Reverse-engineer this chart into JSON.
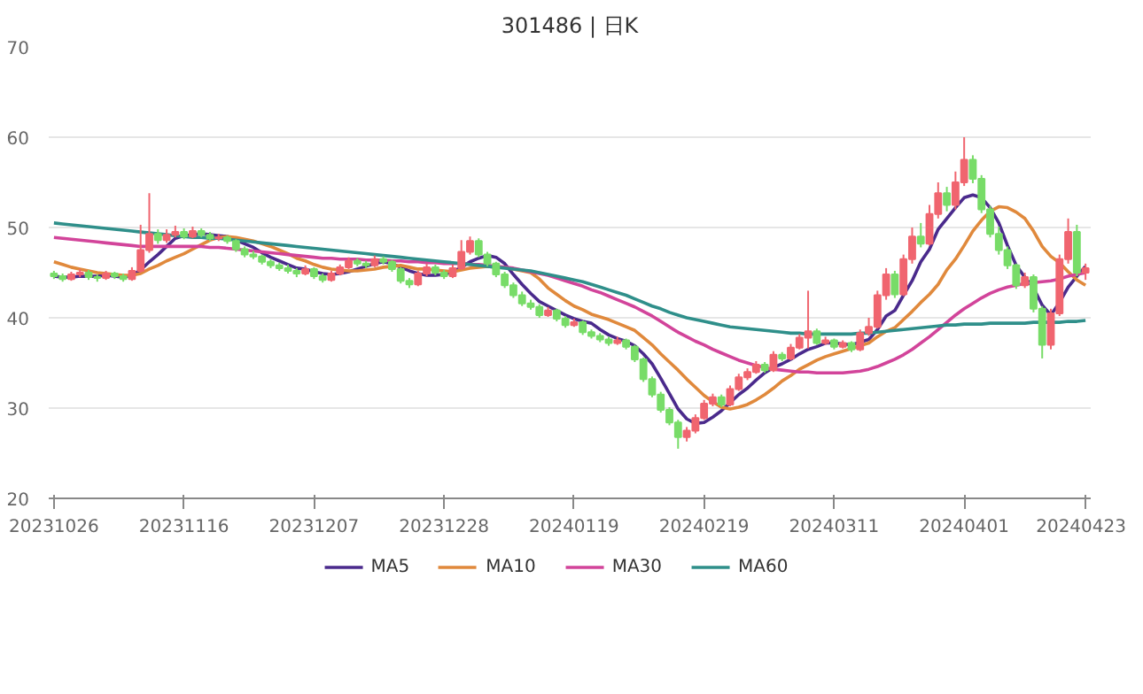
{
  "chart_data": {
    "type": "candlestick",
    "title": "301486 | 日K",
    "categories": [
      "20231026",
      null,
      null,
      null,
      null,
      null,
      null,
      null,
      null,
      null,
      null,
      null,
      null,
      null,
      null,
      "20231116",
      null,
      null,
      null,
      null,
      null,
      null,
      null,
      null,
      null,
      null,
      null,
      null,
      null,
      null,
      "20231207",
      null,
      null,
      null,
      null,
      null,
      null,
      null,
      null,
      null,
      null,
      null,
      null,
      null,
      null,
      "20231228",
      null,
      null,
      null,
      null,
      null,
      null,
      null,
      null,
      null,
      null,
      null,
      null,
      null,
      null,
      "20240119",
      null,
      null,
      null,
      null,
      null,
      null,
      null,
      null,
      null,
      null,
      null,
      null,
      null,
      null,
      "20240219",
      null,
      null,
      null,
      null,
      null,
      null,
      null,
      null,
      null,
      null,
      null,
      null,
      null,
      null,
      "20240311",
      null,
      null,
      null,
      null,
      null,
      null,
      null,
      null,
      null,
      null,
      null,
      null,
      null,
      null,
      "20240401",
      null,
      null,
      null,
      null,
      null,
      null,
      null,
      null,
      null,
      null,
      null,
      null,
      null,
      "20240423"
    ],
    "ohlc": [
      [
        44.9,
        45.2,
        44.3,
        44.6
      ],
      [
        44.6,
        44.9,
        44.0,
        44.3
      ],
      [
        44.3,
        45.1,
        44.1,
        44.8
      ],
      [
        44.8,
        45.4,
        44.5,
        45.0
      ],
      [
        45.0,
        45.3,
        44.2,
        44.5
      ],
      [
        44.5,
        44.8,
        44.0,
        44.4
      ],
      [
        44.4,
        45.2,
        44.2,
        44.9
      ],
      [
        44.9,
        45.1,
        44.3,
        44.6
      ],
      [
        44.6,
        44.9,
        44.0,
        44.3
      ],
      [
        44.3,
        45.6,
        44.1,
        45.2
      ],
      [
        45.2,
        50.3,
        45.0,
        47.5
      ],
      [
        47.5,
        53.8,
        47.2,
        49.3
      ],
      [
        49.3,
        49.8,
        48.2,
        48.6
      ],
      [
        48.6,
        49.8,
        48.3,
        49.2
      ],
      [
        49.2,
        50.2,
        48.9,
        49.5
      ],
      [
        49.5,
        49.9,
        48.7,
        49.0
      ],
      [
        49.0,
        50.1,
        48.8,
        49.6
      ],
      [
        49.6,
        49.9,
        48.9,
        49.2
      ],
      [
        49.2,
        49.5,
        48.5,
        48.8
      ],
      [
        48.8,
        49.3,
        48.5,
        48.9
      ],
      [
        48.9,
        49.1,
        48.2,
        48.5
      ],
      [
        48.5,
        48.7,
        47.3,
        47.6
      ],
      [
        47.6,
        47.9,
        46.7,
        47.0
      ],
      [
        47.0,
        47.4,
        46.5,
        46.8
      ],
      [
        46.8,
        47.0,
        45.9,
        46.2
      ],
      [
        46.2,
        46.5,
        45.5,
        45.8
      ],
      [
        45.8,
        46.1,
        45.2,
        45.5
      ],
      [
        45.5,
        45.9,
        44.9,
        45.2
      ],
      [
        45.2,
        45.5,
        44.5,
        44.9
      ],
      [
        44.9,
        45.8,
        44.7,
        45.4
      ],
      [
        45.4,
        45.6,
        44.3,
        44.6
      ],
      [
        44.6,
        44.9,
        43.9,
        44.2
      ],
      [
        44.2,
        45.2,
        44.0,
        44.9
      ],
      [
        44.9,
        45.9,
        44.7,
        45.6
      ],
      [
        45.6,
        46.7,
        45.4,
        46.3
      ],
      [
        46.3,
        46.6,
        45.7,
        46.0
      ],
      [
        46.0,
        46.3,
        45.5,
        45.8
      ],
      [
        45.8,
        46.9,
        45.6,
        46.5
      ],
      [
        46.5,
        46.8,
        45.9,
        46.2
      ],
      [
        46.2,
        46.4,
        45.1,
        45.4
      ],
      [
        45.4,
        45.6,
        43.8,
        44.1
      ],
      [
        44.1,
        44.4,
        43.3,
        43.7
      ],
      [
        43.7,
        45.2,
        43.5,
        44.9
      ],
      [
        44.9,
        46.0,
        44.6,
        45.6
      ],
      [
        45.6,
        45.9,
        44.7,
        45.0
      ],
      [
        45.0,
        45.3,
        44.3,
        44.6
      ],
      [
        44.6,
        45.9,
        44.4,
        45.5
      ],
      [
        45.5,
        48.6,
        45.3,
        47.3
      ],
      [
        47.3,
        49.0,
        47.0,
        48.5
      ],
      [
        48.5,
        48.8,
        46.7,
        47.0
      ],
      [
        47.0,
        47.3,
        45.7,
        46.0
      ],
      [
        46.0,
        46.2,
        44.5,
        44.8
      ],
      [
        44.8,
        45.1,
        43.3,
        43.6
      ],
      [
        43.6,
        43.9,
        42.2,
        42.5
      ],
      [
        42.5,
        42.9,
        41.3,
        41.6
      ],
      [
        41.6,
        42.0,
        40.9,
        41.2
      ],
      [
        41.2,
        41.5,
        40.0,
        40.3
      ],
      [
        40.3,
        41.2,
        40.1,
        40.8
      ],
      [
        40.8,
        41.0,
        39.6,
        39.9
      ],
      [
        39.9,
        40.2,
        38.9,
        39.2
      ],
      [
        39.2,
        39.9,
        39.0,
        39.5
      ],
      [
        39.5,
        39.7,
        38.1,
        38.4
      ],
      [
        38.4,
        38.7,
        37.7,
        38.0
      ],
      [
        38.0,
        38.3,
        37.3,
        37.6
      ],
      [
        37.6,
        37.9,
        36.9,
        37.2
      ],
      [
        37.2,
        37.9,
        37.0,
        37.5
      ],
      [
        37.5,
        37.7,
        36.5,
        36.8
      ],
      [
        36.8,
        37.0,
        35.1,
        35.4
      ],
      [
        35.4,
        35.6,
        32.9,
        33.2
      ],
      [
        33.2,
        33.5,
        31.2,
        31.5
      ],
      [
        31.5,
        31.8,
        29.5,
        29.8
      ],
      [
        29.8,
        30.1,
        28.1,
        28.4
      ],
      [
        28.4,
        28.7,
        25.5,
        26.8
      ],
      [
        26.8,
        27.9,
        26.3,
        27.5
      ],
      [
        27.5,
        29.3,
        27.2,
        28.9
      ],
      [
        28.9,
        30.9,
        28.7,
        30.5
      ],
      [
        30.5,
        31.6,
        30.2,
        31.2
      ],
      [
        31.2,
        31.5,
        30.1,
        30.4
      ],
      [
        30.4,
        32.5,
        30.2,
        32.1
      ],
      [
        32.1,
        33.8,
        31.9,
        33.4
      ],
      [
        33.4,
        34.4,
        33.1,
        34.0
      ],
      [
        34.0,
        35.2,
        33.8,
        34.8
      ],
      [
        34.8,
        35.1,
        33.9,
        34.2
      ],
      [
        34.2,
        36.3,
        34.0,
        35.9
      ],
      [
        35.9,
        36.2,
        35.2,
        35.5
      ],
      [
        35.5,
        37.1,
        35.3,
        36.7
      ],
      [
        36.7,
        38.2,
        36.5,
        37.8
      ],
      [
        37.8,
        43.0,
        36.6,
        38.5
      ],
      [
        38.5,
        38.8,
        37.0,
        37.2
      ],
      [
        37.2,
        37.9,
        37.0,
        37.5
      ],
      [
        37.5,
        37.7,
        36.5,
        36.8
      ],
      [
        36.8,
        37.5,
        36.6,
        37.2
      ],
      [
        37.2,
        37.4,
        36.2,
        36.5
      ],
      [
        36.5,
        38.7,
        36.3,
        38.3
      ],
      [
        38.3,
        40.0,
        38.0,
        39.0
      ],
      [
        39.0,
        43.0,
        38.8,
        42.5
      ],
      [
        42.5,
        45.5,
        42.0,
        44.8
      ],
      [
        44.8,
        45.2,
        42.2,
        42.6
      ],
      [
        42.6,
        47.0,
        42.4,
        46.5
      ],
      [
        46.5,
        50.0,
        46.0,
        49.0
      ],
      [
        49.0,
        50.5,
        47.8,
        48.2
      ],
      [
        48.2,
        52.5,
        48.0,
        51.5
      ],
      [
        51.5,
        55.0,
        51.0,
        53.8
      ],
      [
        53.8,
        54.5,
        51.8,
        52.5
      ],
      [
        52.5,
        56.2,
        52.0,
        55.0
      ],
      [
        55.0,
        60.0,
        54.6,
        57.5
      ],
      [
        57.5,
        58.0,
        54.9,
        55.4
      ],
      [
        55.4,
        55.8,
        51.6,
        52.0
      ],
      [
        52.0,
        52.4,
        48.9,
        49.3
      ],
      [
        49.3,
        50.1,
        47.0,
        47.5
      ],
      [
        47.5,
        47.9,
        45.4,
        45.8
      ],
      [
        45.8,
        46.0,
        43.2,
        43.6
      ],
      [
        43.6,
        45.0,
        43.3,
        44.5
      ],
      [
        44.5,
        44.8,
        40.6,
        41.0
      ],
      [
        41.0,
        41.3,
        35.5,
        37.0
      ],
      [
        37.0,
        41.0,
        36.5,
        40.5
      ],
      [
        40.5,
        47.0,
        40.2,
        46.5
      ],
      [
        46.5,
        51.0,
        46.0,
        49.5
      ],
      [
        49.5,
        50.3,
        44.6,
        45.0
      ],
      [
        45.0,
        46.0,
        44.2,
        45.5
      ]
    ],
    "colors": [
      "#78dc68",
      "#78dc68",
      "#f0656f",
      "#f0656f",
      "#78dc68",
      "#78dc68",
      "#f0656f",
      "#78dc68",
      "#78dc68",
      "#f0656f",
      "#f0656f",
      "#f0656f",
      "#78dc68",
      "#f0656f",
      "#f0656f",
      "#78dc68",
      "#f0656f",
      "#78dc68",
      "#78dc68",
      "#f0656f",
      "#78dc68",
      "#78dc68",
      "#78dc68",
      "#78dc68",
      "#78dc68",
      "#78dc68",
      "#78dc68",
      "#78dc68",
      "#78dc68",
      "#f0656f",
      "#78dc68",
      "#78dc68",
      "#f0656f",
      "#f0656f",
      "#f0656f",
      "#78dc68",
      "#78dc68",
      "#f0656f",
      "#78dc68",
      "#78dc68",
      "#78dc68",
      "#78dc68",
      "#f0656f",
      "#f0656f",
      "#78dc68",
      "#78dc68",
      "#f0656f",
      "#f0656f",
      "#f0656f",
      "#78dc68",
      "#78dc68",
      "#78dc68",
      "#78dc68",
      "#78dc68",
      "#78dc68",
      "#78dc68",
      "#78dc68",
      "#f0656f",
      "#78dc68",
      "#78dc68",
      "#f0656f",
      "#78dc68",
      "#78dc68",
      "#78dc68",
      "#78dc68",
      "#f0656f",
      "#78dc68",
      "#78dc68",
      "#78dc68",
      "#78dc68",
      "#78dc68",
      "#78dc68",
      "#78dc68",
      "#f0656f",
      "#f0656f",
      "#f0656f",
      "#f0656f",
      "#78dc68",
      "#f0656f",
      "#f0656f",
      "#f0656f",
      "#f0656f",
      "#78dc68",
      "#f0656f",
      "#78dc68",
      "#f0656f",
      "#f0656f",
      "#f0656f",
      "#78dc68",
      "#f0656f",
      "#78dc68",
      "#f0656f",
      "#78dc68",
      "#f0656f",
      "#f0656f",
      "#f0656f",
      "#f0656f",
      "#78dc68",
      "#f0656f",
      "#f0656f",
      "#78dc68",
      "#f0656f",
      "#f0656f",
      "#78dc68",
      "#f0656f",
      "#f0656f",
      "#78dc68",
      "#78dc68",
      "#78dc68",
      "#78dc68",
      "#78dc68",
      "#78dc68",
      "#f0656f",
      "#78dc68",
      "#78dc68",
      "#f0656f",
      "#f0656f",
      "#f0656f",
      "#78dc68",
      "#f0656f"
    ],
    "series": [
      {
        "name": "MA5",
        "type": "line",
        "color": "#4a2a8c",
        "values": [
          44.6,
          44.5,
          44.5,
          44.6,
          44.6,
          44.6,
          44.7,
          44.6,
          44.5,
          44.7,
          45.3,
          46.2,
          47.0,
          47.9,
          48.8,
          49.1,
          49.2,
          49.3,
          49.2,
          49.1,
          49.0,
          48.6,
          48.2,
          47.8,
          47.2,
          46.7,
          46.3,
          45.9,
          45.5,
          45.4,
          45.1,
          44.9,
          44.8,
          44.9,
          45.1,
          45.4,
          45.7,
          46.0,
          46.2,
          46.0,
          45.6,
          45.2,
          44.9,
          44.7,
          44.7,
          44.8,
          45.1,
          45.6,
          46.2,
          46.6,
          46.9,
          46.7,
          46.0,
          44.8,
          43.7,
          42.7,
          41.8,
          41.3,
          40.8,
          40.3,
          39.9,
          39.6,
          39.4,
          38.7,
          38.1,
          37.7,
          37.4,
          36.9,
          36.0,
          34.9,
          33.3,
          31.6,
          29.9,
          28.8,
          28.3,
          28.4,
          29.0,
          29.7,
          30.6,
          31.5,
          32.2,
          33.1,
          33.9,
          34.5,
          34.9,
          35.4,
          36.0,
          36.5,
          36.8,
          37.2,
          37.2,
          37.1,
          37.0,
          37.3,
          37.6,
          38.7,
          40.2,
          40.8,
          42.5,
          44.1,
          46.2,
          47.6,
          49.8,
          51.0,
          52.2,
          53.3,
          53.6,
          53.3,
          52.2,
          50.5,
          48.0,
          45.8,
          44.5,
          43.3,
          41.4,
          40.3,
          41.7,
          43.4,
          44.6,
          45.7
        ]
      },
      {
        "name": "MA10",
        "type": "line",
        "color": "#e0893c",
        "values": [
          46.2,
          45.9,
          45.6,
          45.4,
          45.2,
          45.0,
          44.9,
          44.8,
          44.7,
          44.7,
          44.9,
          45.4,
          45.8,
          46.3,
          46.7,
          47.1,
          47.6,
          48.1,
          48.6,
          48.9,
          49.0,
          48.9,
          48.7,
          48.5,
          48.2,
          47.9,
          47.5,
          47.1,
          46.6,
          46.3,
          45.9,
          45.6,
          45.4,
          45.3,
          45.2,
          45.2,
          45.3,
          45.4,
          45.6,
          45.7,
          45.8,
          45.6,
          45.4,
          45.4,
          45.3,
          45.2,
          45.1,
          45.3,
          45.5,
          45.6,
          45.7,
          45.6,
          45.6,
          45.4,
          45.2,
          45.0,
          44.3,
          43.3,
          42.6,
          41.9,
          41.3,
          40.9,
          40.4,
          40.1,
          39.8,
          39.4,
          39.0,
          38.6,
          37.8,
          37.0,
          36.0,
          35.1,
          34.2,
          33.2,
          32.3,
          31.4,
          30.7,
          30.1,
          29.9,
          30.1,
          30.4,
          30.9,
          31.5,
          32.2,
          33.0,
          33.6,
          34.3,
          34.8,
          35.3,
          35.7,
          36.0,
          36.3,
          36.6,
          36.9,
          37.2,
          37.9,
          38.5,
          38.9,
          39.8,
          40.7,
          41.7,
          42.6,
          43.7,
          45.3,
          46.5,
          48.0,
          49.6,
          50.8,
          51.8,
          52.3,
          52.2,
          51.7,
          51.0,
          49.6,
          47.9,
          46.8,
          46.1,
          45.1,
          44.2,
          43.6
        ]
      },
      {
        "name": "MA30",
        "type": "line",
        "color": "#d2449a",
        "values": [
          48.9,
          48.8,
          48.7,
          48.6,
          48.5,
          48.4,
          48.3,
          48.2,
          48.1,
          48.0,
          47.9,
          47.9,
          47.9,
          47.9,
          47.9,
          47.9,
          47.9,
          47.9,
          47.8,
          47.8,
          47.7,
          47.6,
          47.5,
          47.4,
          47.3,
          47.2,
          47.1,
          47.0,
          46.9,
          46.8,
          46.7,
          46.6,
          46.6,
          46.5,
          46.5,
          46.5,
          46.4,
          46.4,
          46.4,
          46.3,
          46.3,
          46.2,
          46.2,
          46.1,
          46.1,
          46.0,
          46.0,
          46.0,
          45.9,
          45.9,
          45.8,
          45.7,
          45.6,
          45.5,
          45.3,
          45.1,
          44.9,
          44.7,
          44.4,
          44.1,
          43.8,
          43.5,
          43.1,
          42.8,
          42.4,
          42.0,
          41.6,
          41.2,
          40.7,
          40.2,
          39.6,
          39.0,
          38.4,
          37.9,
          37.4,
          37.0,
          36.5,
          36.1,
          35.7,
          35.3,
          35.0,
          34.7,
          34.5,
          34.3,
          34.2,
          34.1,
          34.0,
          34.0,
          33.9,
          33.9,
          33.9,
          33.9,
          34.0,
          34.1,
          34.3,
          34.6,
          35.0,
          35.4,
          35.9,
          36.5,
          37.2,
          37.9,
          38.7,
          39.5,
          40.3,
          41.0,
          41.6,
          42.2,
          42.7,
          43.1,
          43.4,
          43.6,
          43.8,
          43.9,
          44.0,
          44.1,
          44.3,
          44.6,
          44.8,
          45.0
        ]
      },
      {
        "name": "MA60",
        "type": "line",
        "color": "#2f8f8a",
        "values": [
          50.5,
          50.4,
          50.3,
          50.2,
          50.1,
          50.0,
          49.9,
          49.8,
          49.7,
          49.6,
          49.5,
          49.4,
          49.3,
          49.2,
          49.1,
          49.0,
          48.9,
          48.9,
          48.8,
          48.8,
          48.7,
          48.6,
          48.5,
          48.4,
          48.3,
          48.2,
          48.1,
          48.0,
          47.9,
          47.8,
          47.7,
          47.6,
          47.5,
          47.4,
          47.3,
          47.2,
          47.1,
          47.0,
          46.9,
          46.8,
          46.7,
          46.6,
          46.5,
          46.4,
          46.3,
          46.2,
          46.1,
          46.0,
          45.9,
          45.8,
          45.7,
          45.6,
          45.5,
          45.4,
          45.3,
          45.2,
          45.0,
          44.8,
          44.6,
          44.4,
          44.2,
          44.0,
          43.7,
          43.4,
          43.1,
          42.8,
          42.5,
          42.1,
          41.7,
          41.3,
          41.0,
          40.6,
          40.3,
          40.0,
          39.8,
          39.6,
          39.4,
          39.2,
          39.0,
          38.9,
          38.8,
          38.7,
          38.6,
          38.5,
          38.4,
          38.3,
          38.3,
          38.2,
          38.2,
          38.2,
          38.2,
          38.2,
          38.2,
          38.3,
          38.3,
          38.4,
          38.5,
          38.6,
          38.7,
          38.8,
          38.9,
          39.0,
          39.1,
          39.2,
          39.2,
          39.3,
          39.3,
          39.3,
          39.4,
          39.4,
          39.4,
          39.4,
          39.4,
          39.5,
          39.5,
          39.5,
          39.5,
          39.6,
          39.6,
          39.7
        ]
      }
    ],
    "ylim": [
      20,
      70
    ],
    "yticks": [
      20,
      30,
      40,
      50,
      60,
      70
    ],
    "grid": "y",
    "legend": "bottom"
  }
}
